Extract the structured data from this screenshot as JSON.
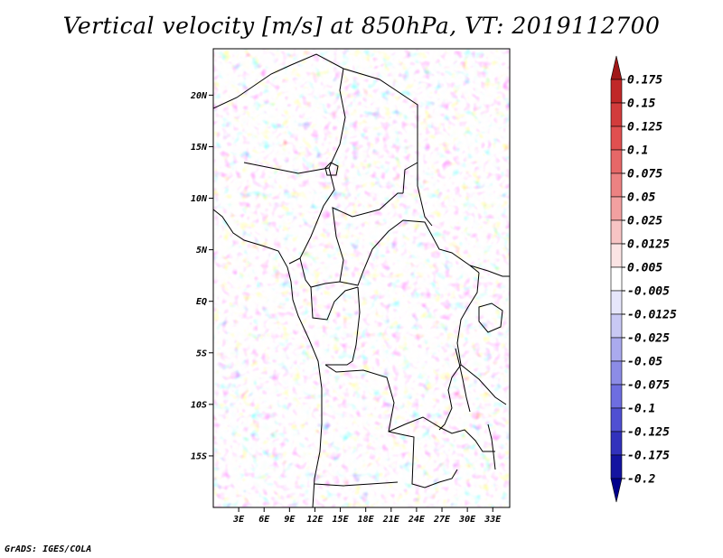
{
  "title": "Vertical velocity [m/s] at 850hPa, VT: 2019112700",
  "credit": "GrADS: IGES/COLA",
  "map": {
    "lon_range": [
      0,
      35
    ],
    "lat_range": [
      -20,
      24.5
    ],
    "lat_ticks": [
      {
        "value": 20,
        "label": "20N"
      },
      {
        "value": 15,
        "label": "15N"
      },
      {
        "value": 10,
        "label": "10N"
      },
      {
        "value": 5,
        "label": "5N"
      },
      {
        "value": 0,
        "label": "EQ"
      },
      {
        "value": -5,
        "label": "5S"
      },
      {
        "value": -10,
        "label": "10S"
      },
      {
        "value": -15,
        "label": "15S"
      }
    ],
    "lon_ticks": [
      {
        "value": 3,
        "label": "3E"
      },
      {
        "value": 6,
        "label": "6E"
      },
      {
        "value": 9,
        "label": "9E"
      },
      {
        "value": 12,
        "label": "12E"
      },
      {
        "value": 15,
        "label": "15E"
      },
      {
        "value": 18,
        "label": "18E"
      },
      {
        "value": 21,
        "label": "21E"
      },
      {
        "value": 24,
        "label": "24E"
      },
      {
        "value": 27,
        "label": "27E"
      },
      {
        "value": 30,
        "label": "30E"
      },
      {
        "value": 33,
        "label": "33E"
      }
    ]
  },
  "colorbar": {
    "levels": [
      "0.175",
      "0.15",
      "0.125",
      "0.1",
      "0.075",
      "0.05",
      "0.025",
      "0.0125",
      "0.005",
      "-0.005",
      "-0.0125",
      "-0.025",
      "-0.05",
      "-0.075",
      "-0.1",
      "-0.125",
      "-0.175",
      "-0.2"
    ],
    "colors": [
      "#a01818",
      "#c02828",
      "#d23c3c",
      "#e05050",
      "#e66868",
      "#ec8282",
      "#f2a0a0",
      "#f7c4c4",
      "#fbe4e4",
      "#ffffff",
      "#e6e6fb",
      "#c8c8f4",
      "#aaaaee",
      "#8c8ce6",
      "#6e6ee0",
      "#5050d2",
      "#3232bc",
      "#1414a0",
      "#00008c"
    ]
  }
}
